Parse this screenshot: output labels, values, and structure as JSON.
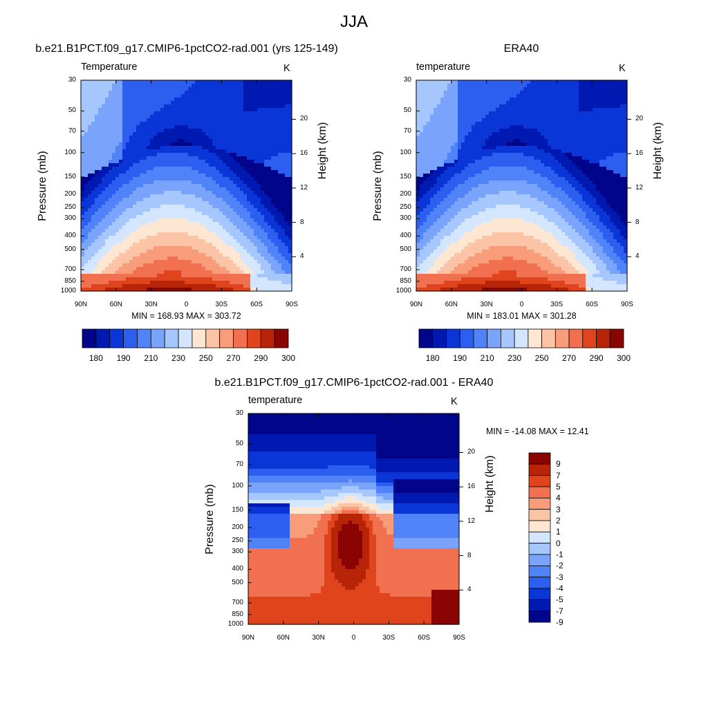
{
  "page": {
    "title": "JJA"
  },
  "colors": {
    "temp_levels": [
      "#00058a",
      "#0019b0",
      "#0a36d8",
      "#2c5ef0",
      "#5082f8",
      "#7aa4fc",
      "#a6c6fe",
      "#d4e6fe",
      "#fde6d2",
      "#fcc4a6",
      "#f89c7a",
      "#f07050",
      "#e0441c",
      "#b82408",
      "#8a0404"
    ],
    "diff_levels": [
      "#00058a",
      "#0019b0",
      "#0a36d8",
      "#2c5ef0",
      "#5082f8",
      "#7aa4fc",
      "#a6c6fe",
      "#d4e6fe",
      "#fde6d2",
      "#fcc4a6",
      "#f89c7a",
      "#f07050",
      "#e0441c",
      "#b82408",
      "#8a0404"
    ]
  },
  "chart_data": [
    {
      "type": "heatmap",
      "title": "b.e21.B1PCT.f09_g17.CMIP6-1pctCO2-rad.001 (yrs 125-149)",
      "variable_label": "Temperature",
      "units": "K",
      "xlabel": "",
      "ylabel": "Pressure (mb)",
      "ylabel_right": "Height (km)",
      "x_ticks": [
        "90N",
        "60N",
        "30N",
        "0",
        "30S",
        "60S",
        "90S"
      ],
      "y_ticks": [
        "30",
        "50",
        "70",
        "100",
        "150",
        "200",
        "250",
        "300",
        "400",
        "500",
        "700",
        "850",
        "1000"
      ],
      "y_right_ticks": [
        "20",
        "16",
        "12",
        "8",
        "4"
      ],
      "yscale": "log",
      "ylim": [
        1000,
        30
      ],
      "stats": "MIN = 168.93  MAX = 303.72",
      "min": 168.93,
      "max": 303.72,
      "colorbar_ticks": [
        "180",
        "190",
        "210",
        "230",
        "250",
        "270",
        "290",
        "300"
      ]
    },
    {
      "type": "heatmap",
      "title": "ERA40",
      "variable_label": "temperature",
      "units": "K",
      "xlabel": "",
      "ylabel": "Pressure (mb)",
      "ylabel_right": "Height (km)",
      "x_ticks": [
        "90N",
        "60N",
        "30N",
        "0",
        "30S",
        "60S",
        "90S"
      ],
      "y_ticks": [
        "30",
        "50",
        "70",
        "100",
        "150",
        "200",
        "250",
        "300",
        "400",
        "500",
        "700",
        "850",
        "1000"
      ],
      "y_right_ticks": [
        "20",
        "16",
        "12",
        "8",
        "4"
      ],
      "yscale": "log",
      "ylim": [
        1000,
        30
      ],
      "stats": "MIN = 183.01  MAX = 301.28",
      "min": 183.01,
      "max": 301.28,
      "colorbar_ticks": [
        "180",
        "190",
        "210",
        "230",
        "250",
        "270",
        "290",
        "300"
      ]
    },
    {
      "type": "heatmap",
      "title": "b.e21.B1PCT.f09_g17.CMIP6-1pctCO2-rad.001 - ERA40",
      "variable_label": "temperature",
      "units": "K",
      "xlabel": "",
      "ylabel": "Pressure (mb)",
      "ylabel_right": "Height (km)",
      "x_ticks": [
        "90N",
        "60N",
        "30N",
        "0",
        "30S",
        "60S",
        "90S"
      ],
      "y_ticks": [
        "30",
        "50",
        "70",
        "100",
        "150",
        "200",
        "250",
        "300",
        "400",
        "500",
        "700",
        "850",
        "1000"
      ],
      "y_right_ticks": [
        "20",
        "16",
        "12",
        "8",
        "4"
      ],
      "yscale": "log",
      "ylim": [
        1000,
        30
      ],
      "stats": "MIN = -14.08  MAX =  12.41",
      "min": -14.08,
      "max": 12.41,
      "colorbar_ticks": [
        "9",
        "7",
        "5",
        "4",
        "3",
        "2",
        "1",
        "0",
        "-1",
        "-2",
        "-3",
        "-4",
        "-5",
        "-7",
        "-9"
      ]
    }
  ]
}
